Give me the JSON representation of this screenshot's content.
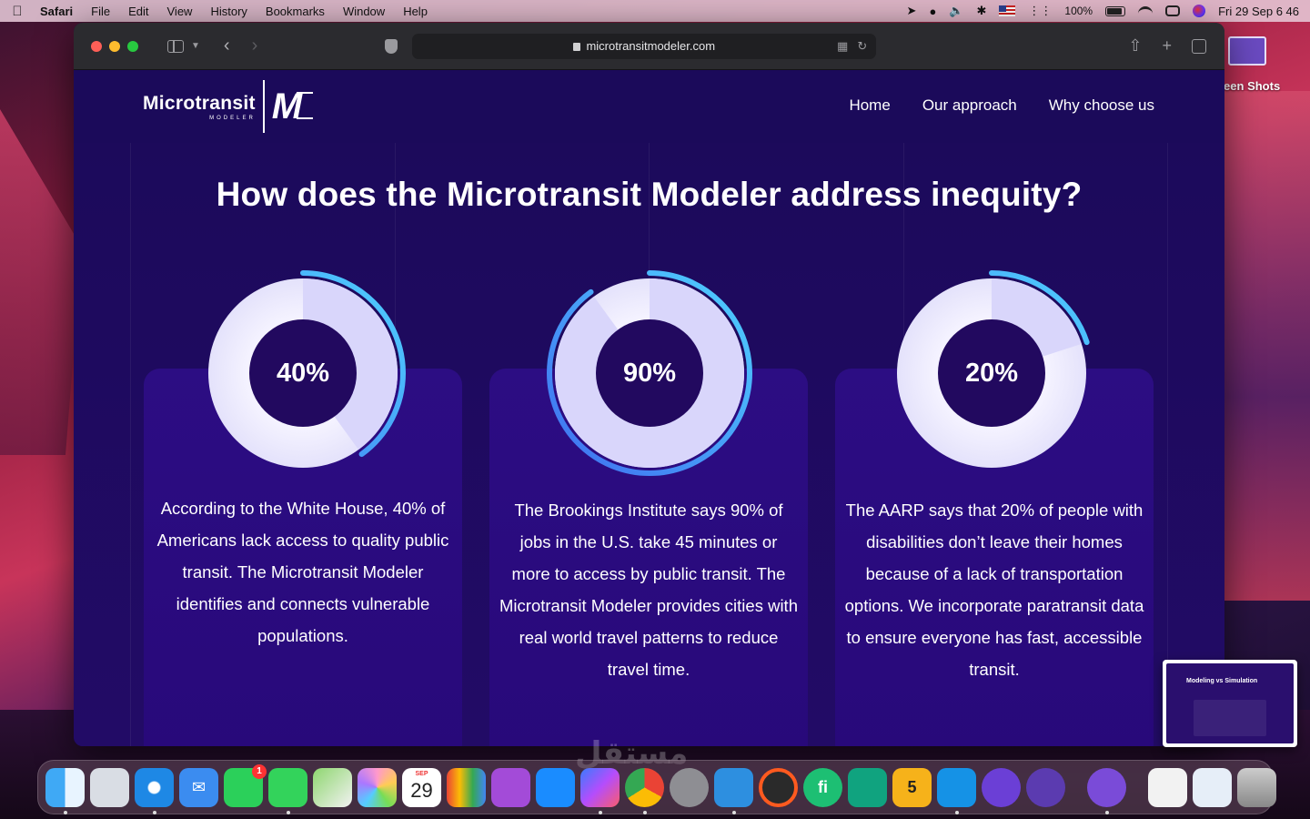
{
  "menubar": {
    "app": "Safari",
    "items": [
      "File",
      "Edit",
      "View",
      "History",
      "Bookmarks",
      "Window",
      "Help"
    ],
    "battery": "100%",
    "clock": "Fri 29 Sep  6 46",
    "icons": [
      "location-icon",
      "user-icon",
      "volume-icon",
      "bluetooth-icon",
      "flag-icon",
      "dots-icon",
      "battery-icon",
      "wifi-icon",
      "control-center-icon",
      "siri-icon"
    ]
  },
  "browser": {
    "url": "microtransitmodeler.com"
  },
  "site": {
    "logo_word": "Microtransit",
    "logo_sub": "MODELER",
    "logo_mark": "M",
    "nav": [
      "Home",
      "Our approach",
      "Why choose us"
    ],
    "heading": "How does the Microtransit Modeler address inequity?",
    "stats": [
      {
        "label": "40%",
        "value": 40,
        "text": "According to the White House, 40% of Americans lack access to quality public transit. The Microtransit Modeler identifies and connects vulnerable populations."
      },
      {
        "label": "90%",
        "value": 90,
        "text": "The Brookings Institute says 90% of jobs in the U.S. take 45 minutes or more to access by public transit. The Microtransit Modeler provides cities with real world travel patterns to reduce travel time."
      },
      {
        "label": "20%",
        "value": 20,
        "text": "The AARP says that 20% of people with disabilities don’t leave their homes because of a lack of transportation options. We incorporate paratransit data to ensure everyone has fast, accessible transit."
      }
    ]
  },
  "desktop": {
    "folder_label": "reen Shots"
  },
  "thumbnail": {
    "title": "Modeling vs Simulation"
  },
  "dock": {
    "calendar_month": "SEP",
    "calendar_day": "29",
    "facetime_badge": "1",
    "five_label": "5"
  },
  "watermark": "مستقل",
  "colors": {
    "page_bg": "#1e0a5c",
    "card_bg": "#2c0d83",
    "ring_accent": "#4fc3f7"
  }
}
